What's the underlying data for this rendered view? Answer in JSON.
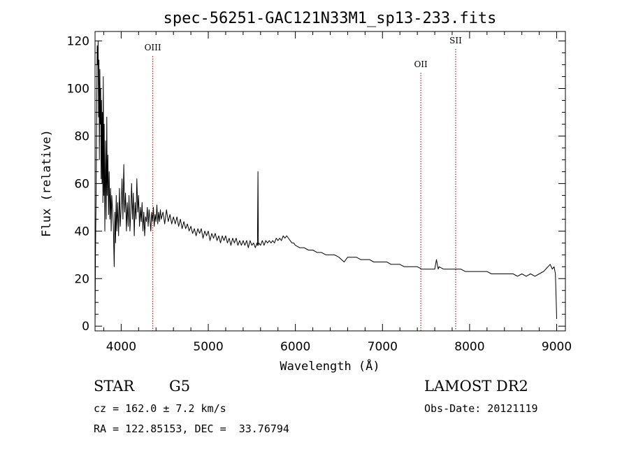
{
  "chart_data": {
    "type": "line",
    "title": "spec-56251-GAC121N33M1_sp13-233.fits",
    "xlabel": "Wavelength (Å)",
    "ylabel": "Flux (relative)",
    "xlim": [
      3700,
      9100
    ],
    "ylim": [
      -2,
      124
    ],
    "x_ticks": [
      4000,
      5000,
      6000,
      7000,
      8000,
      9000
    ],
    "y_ticks": [
      0,
      20,
      40,
      60,
      80,
      100,
      120
    ],
    "grid": false,
    "series": [
      {
        "points": [
          [
            3700,
            0
          ],
          [
            3705,
            30
          ],
          [
            3712,
            55
          ],
          [
            3720,
            95
          ],
          [
            3725,
            118
          ],
          [
            3730,
            110
          ],
          [
            3735,
            120
          ],
          [
            3740,
            88
          ],
          [
            3745,
            112
          ],
          [
            3750,
            70
          ],
          [
            3755,
            108
          ],
          [
            3760,
            85
          ],
          [
            3765,
            100
          ],
          [
            3770,
            62
          ],
          [
            3775,
            95
          ],
          [
            3780,
            60
          ],
          [
            3785,
            90
          ],
          [
            3790,
            52
          ],
          [
            3795,
            105
          ],
          [
            3800,
            55
          ],
          [
            3805,
            85
          ],
          [
            3812,
            40
          ],
          [
            3820,
            78
          ],
          [
            3828,
            45
          ],
          [
            3835,
            88
          ],
          [
            3840,
            55
          ],
          [
            3848,
            72
          ],
          [
            3855,
            47
          ],
          [
            3862,
            65
          ],
          [
            3870,
            45
          ],
          [
            3878,
            58
          ],
          [
            3885,
            40
          ],
          [
            3892,
            55
          ],
          [
            3900,
            50
          ],
          [
            3910,
            42
          ],
          [
            3920,
            25
          ],
          [
            3928,
            48
          ],
          [
            3935,
            35
          ],
          [
            3943,
            55
          ],
          [
            3950,
            40
          ],
          [
            3960,
            52
          ],
          [
            3970,
            38
          ],
          [
            3980,
            58
          ],
          [
            3990,
            42
          ],
          [
            4000,
            50
          ],
          [
            4010,
            62
          ],
          [
            4020,
            45
          ],
          [
            4030,
            68
          ],
          [
            4040,
            48
          ],
          [
            4050,
            56
          ],
          [
            4060,
            40
          ],
          [
            4070,
            52
          ],
          [
            4080,
            42
          ],
          [
            4090,
            55
          ],
          [
            4100,
            40
          ],
          [
            4110,
            48
          ],
          [
            4120,
            60
          ],
          [
            4130,
            45
          ],
          [
            4140,
            56
          ],
          [
            4150,
            38
          ],
          [
            4160,
            52
          ],
          [
            4170,
            45
          ],
          [
            4180,
            62
          ],
          [
            4190,
            48
          ],
          [
            4200,
            55
          ],
          [
            4210,
            42
          ],
          [
            4220,
            50
          ],
          [
            4230,
            44
          ],
          [
            4240,
            52
          ],
          [
            4250,
            40
          ],
          [
            4260,
            48
          ],
          [
            4270,
            38
          ],
          [
            4280,
            46
          ],
          [
            4290,
            44
          ],
          [
            4300,
            50
          ],
          [
            4310,
            42
          ],
          [
            4320,
            49
          ],
          [
            4330,
            45
          ],
          [
            4340,
            40
          ],
          [
            4350,
            48
          ],
          [
            4360,
            44
          ],
          [
            4370,
            50
          ],
          [
            4380,
            42
          ],
          [
            4390,
            47
          ],
          [
            4400,
            44
          ],
          [
            4410,
            51
          ],
          [
            4420,
            43
          ],
          [
            4430,
            48
          ],
          [
            4440,
            44
          ],
          [
            4450,
            49
          ],
          [
            4460,
            45
          ],
          [
            4480,
            48
          ],
          [
            4500,
            43
          ],
          [
            4520,
            49
          ],
          [
            4540,
            44
          ],
          [
            4560,
            47
          ],
          [
            4580,
            43
          ],
          [
            4600,
            46
          ],
          [
            4620,
            43
          ],
          [
            4640,
            46
          ],
          [
            4660,
            42
          ],
          [
            4680,
            45
          ],
          [
            4700,
            41
          ],
          [
            4720,
            44
          ],
          [
            4740,
            41
          ],
          [
            4760,
            43
          ],
          [
            4780,
            40
          ],
          [
            4800,
            42
          ],
          [
            4820,
            39
          ],
          [
            4840,
            41
          ],
          [
            4860,
            38
          ],
          [
            4880,
            41
          ],
          [
            4900,
            39
          ],
          [
            4920,
            41
          ],
          [
            4940,
            37
          ],
          [
            4960,
            40
          ],
          [
            4980,
            38
          ],
          [
            5000,
            40
          ],
          [
            5020,
            36
          ],
          [
            5040,
            39
          ],
          [
            5060,
            37
          ],
          [
            5080,
            39
          ],
          [
            5100,
            36
          ],
          [
            5120,
            38
          ],
          [
            5140,
            35
          ],
          [
            5160,
            38
          ],
          [
            5180,
            36
          ],
          [
            5200,
            38
          ],
          [
            5220,
            35
          ],
          [
            5240,
            37
          ],
          [
            5260,
            34
          ],
          [
            5280,
            37
          ],
          [
            5300,
            35
          ],
          [
            5320,
            37
          ],
          [
            5340,
            34
          ],
          [
            5360,
            36
          ],
          [
            5380,
            34
          ],
          [
            5400,
            36
          ],
          [
            5420,
            34
          ],
          [
            5440,
            36
          ],
          [
            5460,
            33
          ],
          [
            5480,
            36
          ],
          [
            5500,
            34
          ],
          [
            5520,
            35
          ],
          [
            5540,
            33
          ],
          [
            5560,
            35
          ],
          [
            5565,
            34
          ],
          [
            5570,
            65
          ],
          [
            5575,
            34
          ],
          [
            5580,
            35
          ],
          [
            5600,
            34
          ],
          [
            5620,
            36
          ],
          [
            5640,
            34
          ],
          [
            5660,
            36
          ],
          [
            5680,
            35
          ],
          [
            5700,
            36
          ],
          [
            5720,
            35
          ],
          [
            5740,
            36
          ],
          [
            5760,
            35
          ],
          [
            5780,
            37
          ],
          [
            5800,
            36
          ],
          [
            5820,
            37
          ],
          [
            5840,
            36
          ],
          [
            5860,
            38
          ],
          [
            5880,
            37
          ],
          [
            5900,
            38
          ],
          [
            5920,
            37
          ],
          [
            5940,
            36
          ],
          [
            5960,
            35
          ],
          [
            5980,
            35
          ],
          [
            6000,
            34
          ],
          [
            6050,
            33
          ],
          [
            6100,
            33
          ],
          [
            6150,
            32
          ],
          [
            6200,
            32
          ],
          [
            6250,
            31
          ],
          [
            6300,
            31
          ],
          [
            6350,
            30
          ],
          [
            6400,
            30
          ],
          [
            6450,
            30
          ],
          [
            6500,
            29
          ],
          [
            6560,
            27
          ],
          [
            6600,
            29
          ],
          [
            6650,
            29
          ],
          [
            6700,
            29
          ],
          [
            6750,
            28
          ],
          [
            6800,
            28
          ],
          [
            6850,
            28
          ],
          [
            6900,
            27
          ],
          [
            6950,
            27
          ],
          [
            7000,
            27
          ],
          [
            7050,
            27
          ],
          [
            7100,
            26
          ],
          [
            7150,
            26
          ],
          [
            7200,
            26
          ],
          [
            7250,
            25
          ],
          [
            7300,
            25
          ],
          [
            7350,
            25
          ],
          [
            7400,
            25
          ],
          [
            7450,
            24
          ],
          [
            7500,
            24
          ],
          [
            7550,
            24
          ],
          [
            7600,
            24
          ],
          [
            7620,
            28
          ],
          [
            7640,
            24
          ],
          [
            7650,
            25
          ],
          [
            7700,
            24
          ],
          [
            7750,
            24
          ],
          [
            7800,
            24
          ],
          [
            7850,
            24
          ],
          [
            7900,
            24
          ],
          [
            7950,
            23
          ],
          [
            8000,
            23
          ],
          [
            8050,
            23
          ],
          [
            8100,
            23
          ],
          [
            8150,
            23
          ],
          [
            8200,
            23
          ],
          [
            8250,
            22
          ],
          [
            8300,
            22
          ],
          [
            8350,
            22
          ],
          [
            8400,
            22
          ],
          [
            8450,
            22
          ],
          [
            8500,
            22
          ],
          [
            8550,
            21
          ],
          [
            8600,
            22
          ],
          [
            8650,
            21
          ],
          [
            8700,
            22
          ],
          [
            8750,
            21
          ],
          [
            8800,
            22
          ],
          [
            8850,
            23
          ],
          [
            8900,
            25
          ],
          [
            8925,
            26
          ],
          [
            8950,
            24
          ],
          [
            8970,
            25
          ],
          [
            8985,
            22
          ],
          [
            8995,
            10
          ],
          [
            9000,
            3
          ]
        ]
      }
    ],
    "annotations": [
      {
        "label": "OIII",
        "x": 4363,
        "label_y": 116
      },
      {
        "label": "OII",
        "x": 7440,
        "label_y": 109
      },
      {
        "label": "SII",
        "x": 7840,
        "label_y": 119
      }
    ]
  },
  "info": {
    "object_class": "STAR",
    "subclass": "G5",
    "survey": "LAMOST DR2",
    "cz": "cz = 162.0 ± 7.2 km/s",
    "obs_date": "Obs-Date: 20121119",
    "coords": "RA = 122.85153, DEC =  33.76794"
  },
  "colors": {
    "spectrum": "#000000",
    "line_markers": "#8b0000"
  }
}
